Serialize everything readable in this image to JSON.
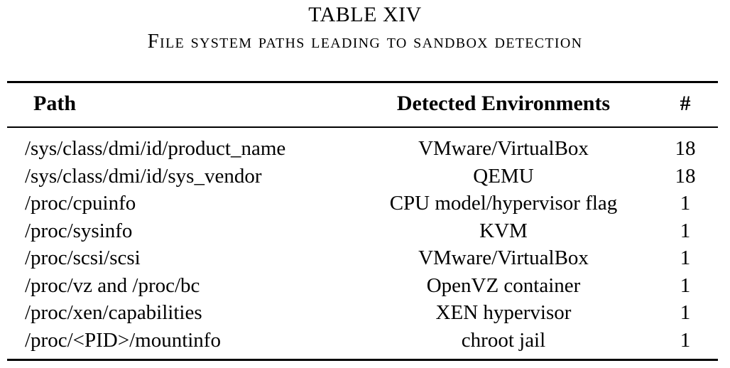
{
  "caption": {
    "table_number": "TABLE XIV",
    "title": "File system paths leading to sandbox detection"
  },
  "table": {
    "headers": {
      "path": "Path",
      "environments": "Detected Environments",
      "count": "#"
    },
    "rows": [
      {
        "path": "/sys/class/dmi/id/product_name",
        "environments": "VMware/VirtualBox",
        "count": "18"
      },
      {
        "path": "/sys/class/dmi/id/sys_vendor",
        "environments": "QEMU",
        "count": "18"
      },
      {
        "path": "/proc/cpuinfo",
        "environments": "CPU model/hypervisor flag",
        "count": "1"
      },
      {
        "path": "/proc/sysinfo",
        "environments": "KVM",
        "count": "1"
      },
      {
        "path": "/proc/scsi/scsi",
        "environments": "VMware/VirtualBox",
        "count": "1"
      },
      {
        "path": "/proc/vz and /proc/bc",
        "environments": "OpenVZ container",
        "count": "1"
      },
      {
        "path": "/proc/xen/capabilities",
        "environments": "XEN hypervisor",
        "count": "1"
      },
      {
        "path": "/proc/<PID>/mountinfo",
        "environments": "chroot jail",
        "count": "1"
      }
    ]
  }
}
